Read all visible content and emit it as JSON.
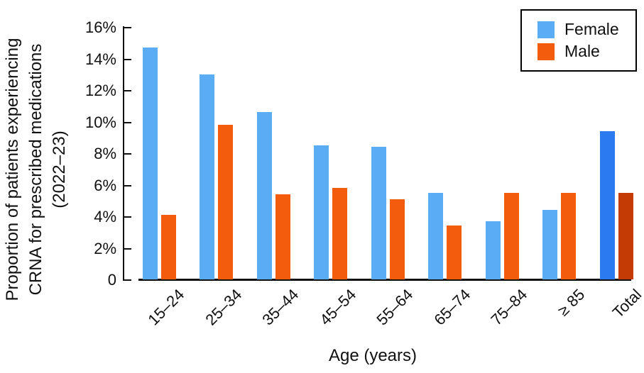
{
  "figure": {
    "y_axis_title_lines": [
      "Proportion of patients experiencing",
      "CRNA for prescribed medications",
      "(2022–23)"
    ],
    "x_axis_title": "Age (years)"
  },
  "chart_data": {
    "type": "bar",
    "title": "",
    "xlabel": "Age (years)",
    "ylabel": "Proportion of patients experiencing CRNA for prescribed medications (2022–23)",
    "categories": [
      "15–24",
      "25–34",
      "35–44",
      "45–54",
      "55–64",
      "65–74",
      "75–84",
      "≥ 85",
      "Total"
    ],
    "series": [
      {
        "name": "Female",
        "values": [
          14.7,
          13.0,
          10.6,
          8.5,
          8.4,
          5.5,
          3.7,
          4.4,
          9.4
        ],
        "color": "#5aadf4",
        "total_color": "#2c7af0"
      },
      {
        "name": "Male",
        "values": [
          4.1,
          9.8,
          5.4,
          5.8,
          5.1,
          3.4,
          5.5,
          5.5,
          5.5
        ],
        "color": "#f45c0d",
        "total_color": "#c43b05"
      }
    ],
    "value_unit": "%",
    "ylim": [
      0,
      16
    ],
    "ytick_values": [
      0,
      2,
      4,
      6,
      8,
      10,
      12,
      14,
      16
    ],
    "ytick_labels": [
      "0",
      "2%",
      "4%",
      "6%",
      "8%",
      "10%",
      "12%",
      "14%",
      "16%"
    ],
    "legend_position": "upper right",
    "grid": false,
    "highlight_category": "Total"
  }
}
